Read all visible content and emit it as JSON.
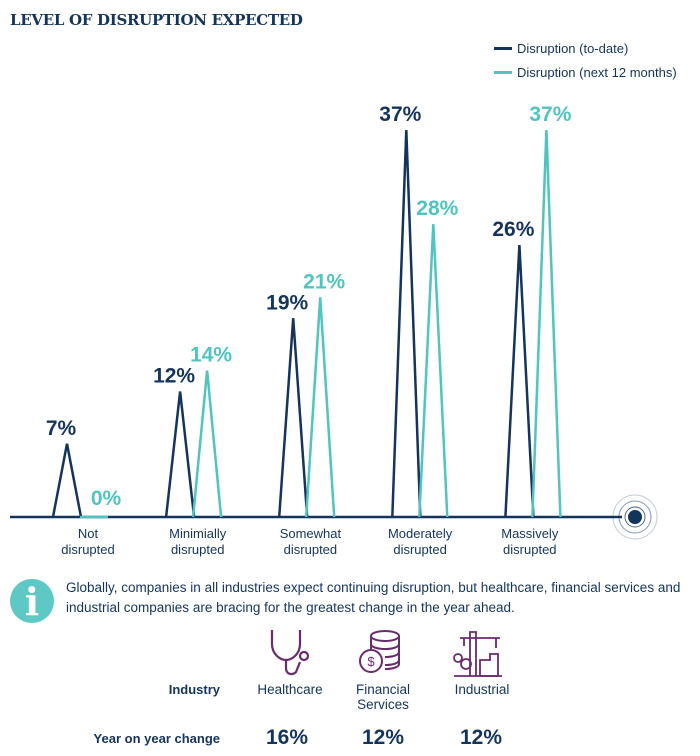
{
  "title": "LEVEL OF DISRUPTION EXPECTED",
  "colors": {
    "navy": "#14345c",
    "teal": "#4fc4c0",
    "purple": "#6b2a6e"
  },
  "chart_data": {
    "type": "line",
    "title": "LEVEL OF DISRUPTION EXPECTED",
    "categories": [
      "Not disrupted",
      "Minimially disrupted",
      "Somewhat disrupted",
      "Moderately disrupted",
      "Massively disrupted"
    ],
    "category_lines": [
      [
        "Not",
        "disrupted"
      ],
      [
        "Minimially",
        "disrupted"
      ],
      [
        "Somewhat",
        "disrupted"
      ],
      [
        "Moderately",
        "disrupted"
      ],
      [
        "Massively",
        "disrupted"
      ]
    ],
    "series": [
      {
        "name": "Disruption (to-date)",
        "color": "#14345c",
        "values": [
          7,
          12,
          19,
          37,
          26
        ],
        "labels": [
          "7%",
          "12%",
          "19%",
          "37%",
          "26%"
        ]
      },
      {
        "name": "Disruption (next 12 months)",
        "color": "#4fc4c0",
        "values": [
          0,
          14,
          21,
          28,
          37
        ],
        "labels": [
          "0%",
          "14%",
          "21%",
          "28%",
          "37%"
        ]
      }
    ],
    "ylim": [
      0,
      37
    ],
    "legend_position": "top-right"
  },
  "note": "Globally, companies in all industries expect continuing disruption, but healthcare, financial services and industrial companies are bracing for the greatest change in the year ahead.",
  "table": {
    "industry_label": "Industry",
    "change_label": "Year on year change",
    "industries": [
      {
        "name": "Healthcare",
        "icon": "stethoscope-icon",
        "change": "16%"
      },
      {
        "name": "Financial Services",
        "icon": "coins-dollar-icon",
        "change": "12%"
      },
      {
        "name": "Industrial",
        "icon": "factory-crane-icon",
        "change": "12%"
      }
    ]
  }
}
